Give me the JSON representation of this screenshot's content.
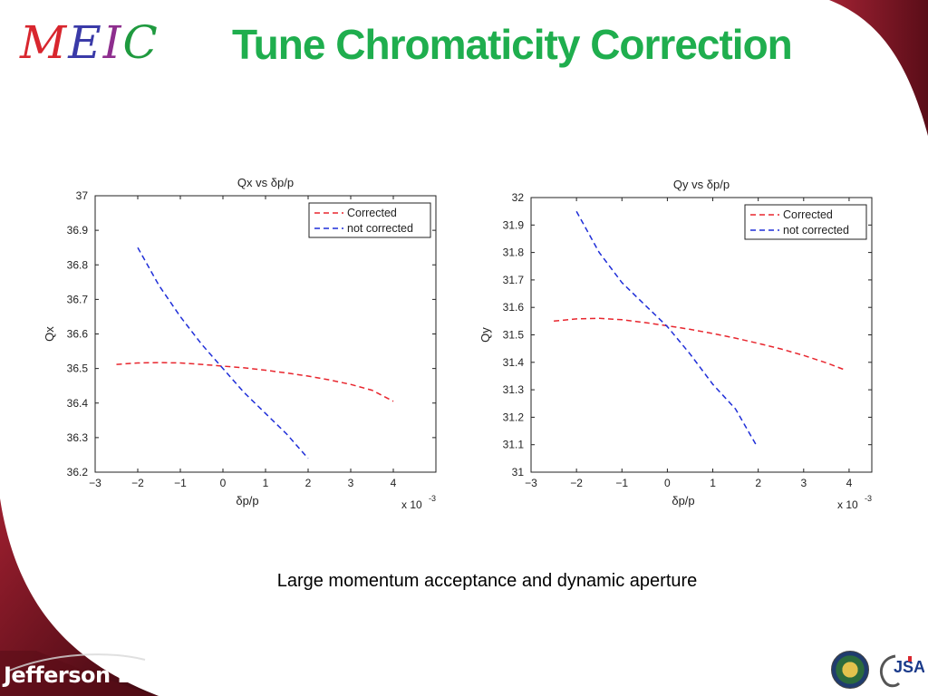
{
  "slide": {
    "logo": {
      "letters": [
        "M",
        "E",
        "I",
        "C"
      ],
      "colors": [
        "#d8262e",
        "#3a3aa8",
        "#8e2e8e",
        "#1f9a3f"
      ]
    },
    "title": "Tune Chromaticity Correction",
    "caption": "Large momentum acceptance and dynamic aperture",
    "footer_left": "Jefferson Lab",
    "footer_right": "JSA",
    "colors": {
      "title": "#1fae4e",
      "frame": "#8b1a2a",
      "corrected": "#e8262e",
      "not_corrected": "#1f2ed8"
    }
  },
  "chart_data": [
    {
      "type": "line",
      "title": "Qx  vs  δp/p",
      "xlabel": "δp/p",
      "ylabel": "Qx",
      "x_multiplier": "x 10",
      "x_multiplier_exp": "-3",
      "xlim": [
        -3,
        5
      ],
      "ylim": [
        36.2,
        37.0
      ],
      "xticks": [
        "−3",
        "−2",
        "−1",
        "0",
        "1",
        "2",
        "3",
        "4"
      ],
      "yticks": [
        "36.2",
        "36.3",
        "36.4",
        "36.5",
        "36.6",
        "36.7",
        "36.8",
        "36.9",
        "37"
      ],
      "grid": false,
      "legend": "top-right",
      "series": [
        {
          "name": "Corrected",
          "style": "dashed",
          "color": "#e8262e",
          "x": [
            -2.5,
            -2.0,
            -1.5,
            -1.0,
            -0.5,
            0.0,
            0.5,
            1.0,
            1.5,
            2.0,
            2.5,
            3.0,
            3.5,
            4.0
          ],
          "y": [
            36.512,
            36.516,
            36.517,
            36.516,
            36.512,
            36.507,
            36.502,
            36.495,
            36.487,
            36.478,
            36.467,
            36.454,
            36.437,
            36.405
          ]
        },
        {
          "name": "not corrected",
          "style": "dashed",
          "color": "#1f2ed8",
          "x": [
            -2.0,
            -1.5,
            -1.0,
            -0.5,
            0.0,
            0.5,
            1.0,
            1.5,
            2.0
          ],
          "y": [
            36.85,
            36.74,
            36.65,
            36.57,
            36.5,
            36.43,
            36.37,
            36.31,
            36.24
          ]
        }
      ]
    },
    {
      "type": "line",
      "title": "Qy  vs  δp/p",
      "xlabel": "δp/p",
      "ylabel": "Qy",
      "x_multiplier": "x 10",
      "x_multiplier_exp": "-3",
      "xlim": [
        -3,
        4.5
      ],
      "ylim": [
        31.0,
        32.0
      ],
      "xticks": [
        "−3",
        "−2",
        "−1",
        "0",
        "1",
        "2",
        "3",
        "4"
      ],
      "yticks": [
        "31",
        "31.1",
        "31.2",
        "31.3",
        "31.4",
        "31.5",
        "31.6",
        "31.7",
        "31.8",
        "31.9",
        "32"
      ],
      "grid": false,
      "legend": "top-right",
      "series": [
        {
          "name": "Corrected",
          "style": "dashed",
          "color": "#e8262e",
          "x": [
            -2.5,
            -2.0,
            -1.5,
            -1.0,
            -0.5,
            0.0,
            0.5,
            1.0,
            1.5,
            2.0,
            2.5,
            3.0,
            3.5,
            3.9
          ],
          "y": [
            31.55,
            31.558,
            31.56,
            31.555,
            31.545,
            31.533,
            31.52,
            31.505,
            31.488,
            31.469,
            31.449,
            31.425,
            31.398,
            31.373
          ]
        },
        {
          "name": "not corrected",
          "style": "dashed",
          "color": "#1f2ed8",
          "x": [
            -2.0,
            -1.5,
            -1.0,
            -0.5,
            0.0,
            0.5,
            1.0,
            1.5,
            1.95
          ],
          "y": [
            31.95,
            31.8,
            31.69,
            31.61,
            31.53,
            31.43,
            31.32,
            31.23,
            31.1
          ]
        }
      ]
    }
  ]
}
